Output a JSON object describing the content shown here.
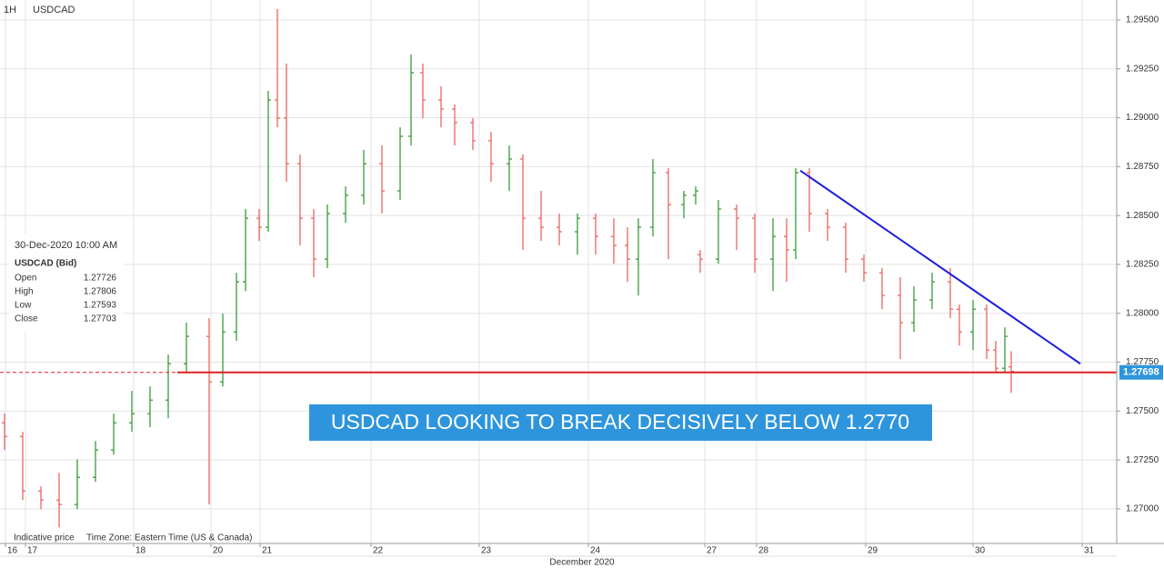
{
  "chart_data": {
    "type": "ohlc",
    "timeframe": "1H",
    "symbol": "USDCAD",
    "annotation": "USDCAD LOOKING TO BREAK DECISIVELY BELOW 1.2770",
    "footer_left": "Indicative price",
    "footer_timezone": "Time Zone: Eastern Time (US & Canada)",
    "x_axis_label": "December 2020",
    "up_color": "#3a9a3a",
    "down_color": "#e8675d",
    "grid": true,
    "xlim": [
      0,
      245.6
    ],
    "xticks": [
      {
        "value": 1.2,
        "label": "16"
      },
      {
        "value": 5.6,
        "label": "17"
      },
      {
        "value": 29.4,
        "label": "18"
      },
      {
        "value": 46.4,
        "label": "20"
      },
      {
        "value": 57.2,
        "label": "21"
      },
      {
        "value": 81.6,
        "label": "22"
      },
      {
        "value": 105.4,
        "label": "23"
      },
      {
        "value": 129.4,
        "label": "24"
      },
      {
        "value": 155,
        "label": "27"
      },
      {
        "value": 166.4,
        "label": "28"
      },
      {
        "value": 190.4,
        "label": "29"
      },
      {
        "value": 214,
        "label": "30"
      },
      {
        "value": 238,
        "label": "31"
      }
    ],
    "ylim": [
      1.26823,
      1.29602
    ],
    "yticks": [
      {
        "value": 1.295,
        "label": "1.29500"
      },
      {
        "value": 1.2925,
        "label": "1.29250"
      },
      {
        "value": 1.29,
        "label": "1.29000"
      },
      {
        "value": 1.2875,
        "label": "1.28750"
      },
      {
        "value": 1.285,
        "label": "1.28500"
      },
      {
        "value": 1.2825,
        "label": "1.28250"
      },
      {
        "value": 1.28,
        "label": "1.28000"
      },
      {
        "value": 1.2775,
        "label": "1.27750"
      },
      {
        "value": 1.275,
        "label": "1.27500"
      },
      {
        "value": 1.2725,
        "label": "1.27250"
      },
      {
        "value": 1.27,
        "label": "1.27000"
      }
    ],
    "last_price": 1.27698,
    "last_price_color": "#e02020",
    "trendline": {
      "color": "#1f1fe0",
      "x": [
        176,
        237.6
      ],
      "y": [
        1.2873,
        1.27742
      ]
    },
    "x": [
      1,
      5,
      9,
      13,
      17,
      21,
      25,
      29,
      33,
      37,
      41,
      46,
      49,
      52,
      54,
      57,
      59,
      61,
      63,
      66,
      69,
      72,
      76,
      80,
      84,
      88,
      90.4,
      93,
      97,
      100,
      104,
      108,
      112,
      115,
      119,
      123,
      127,
      131,
      135,
      138,
      140.4,
      143.6,
      147,
      150.4,
      153,
      154,
      158,
      162,
      166,
      170,
      173,
      175,
      178,
      182,
      186,
      190,
      194,
      198,
      201,
      205,
      209,
      211,
      214,
      217,
      219,
      221,
      222.4
    ],
    "open": [
      1.2744,
      1.2737,
      1.27091,
      1.27045,
      1.27022,
      1.27161,
      1.27301,
      1.2744,
      1.27487,
      1.27556,
      1.27742,
      1.27882,
      1.27649,
      1.27905,
      1.28161,
      1.28486,
      1.2844,
      1.29091,
      1.28998,
      1.28765,
      1.28486,
      1.28277,
      1.2851,
      1.28603,
      1.28765,
      1.28626,
      1.28905,
      1.2923,
      1.29091,
      1.29044,
      1.28975,
      1.28882,
      1.28765,
      1.28789,
      1.28486,
      1.2844,
      1.28417,
      1.28486,
      1.28393,
      1.28347,
      1.28277,
      1.2844,
      1.28719,
      1.28556,
      1.28603,
      1.283,
      1.28277,
      1.28533,
      1.28486,
      1.28277,
      1.28393,
      1.28324,
      1.28719,
      1.2851,
      1.2844,
      1.28277,
      1.28207,
      1.28091,
      1.27952,
      1.28068,
      1.28161,
      1.28021,
      1.27905,
      1.28021,
      1.27812,
      1.27719,
      1.27726
    ],
    "high": [
      1.27487,
      1.27394,
      1.27115,
      1.27184,
      1.27254,
      1.27347,
      1.27487,
      1.27603,
      1.27626,
      1.27789,
      1.27952,
      1.27975,
      1.27998,
      1.28207,
      1.28533,
      1.28533,
      1.29137,
      1.29556,
      1.29277,
      1.28812,
      1.28533,
      1.28556,
      1.28649,
      1.28835,
      1.28858,
      1.28951,
      1.29323,
      1.29277,
      1.29161,
      1.29068,
      1.28998,
      1.28928,
      1.28858,
      1.28812,
      1.28626,
      1.2851,
      1.2851,
      1.2851,
      1.28486,
      1.2844,
      1.28486,
      1.28789,
      1.28742,
      1.28626,
      1.28649,
      1.28324,
      1.28579,
      1.28556,
      1.2851,
      1.28486,
      1.28486,
      1.28742,
      1.28742,
      1.28533,
      1.28463,
      1.283,
      1.28231,
      1.28184,
      1.28138,
      1.28207,
      1.28231,
      1.28045,
      1.28068,
      1.28045,
      1.27859,
      1.27928,
      1.27806
    ],
    "low": [
      1.27301,
      1.27045,
      1.26998,
      1.26905,
      1.26998,
      1.27138,
      1.27277,
      1.27394,
      1.27417,
      1.27463,
      1.27696,
      1.27022,
      1.27626,
      1.27859,
      1.28114,
      1.2837,
      1.28417,
      1.28951,
      1.28672,
      1.28347,
      1.28184,
      1.28231,
      1.28463,
      1.28556,
      1.2851,
      1.28579,
      1.28858,
      1.28998,
      1.28951,
      1.28858,
      1.28835,
      1.28672,
      1.28626,
      1.28324,
      1.2837,
      1.28347,
      1.283,
      1.283,
      1.28254,
      1.28161,
      1.28091,
      1.28393,
      1.28277,
      1.28486,
      1.28556,
      1.28207,
      1.28254,
      1.28324,
      1.28207,
      1.28114,
      1.28161,
      1.28277,
      1.28417,
      1.2837,
      1.28207,
      1.28161,
      1.28021,
      1.27766,
      1.27905,
      1.28021,
      1.27975,
      1.27835,
      1.27812,
      1.27766,
      1.27696,
      1.27696,
      1.27593
    ],
    "close": [
      1.2737,
      1.27091,
      1.27045,
      1.27022,
      1.27161,
      1.27301,
      1.2744,
      1.27487,
      1.27556,
      1.27742,
      1.27882,
      1.27649,
      1.27905,
      1.28161,
      1.28486,
      1.2844,
      1.29091,
      1.28998,
      1.28765,
      1.28486,
      1.28277,
      1.2851,
      1.28603,
      1.28765,
      1.28626,
      1.28905,
      1.2923,
      1.29091,
      1.29044,
      1.28975,
      1.28882,
      1.28765,
      1.28789,
      1.28486,
      1.2844,
      1.28417,
      1.28486,
      1.28393,
      1.28347,
      1.28277,
      1.2844,
      1.28719,
      1.28556,
      1.28603,
      1.28626,
      1.28277,
      1.28533,
      1.28486,
      1.28277,
      1.28393,
      1.28324,
      1.28719,
      1.2851,
      1.2844,
      1.28277,
      1.28207,
      1.28091,
      1.27952,
      1.28068,
      1.28161,
      1.28021,
      1.27905,
      1.28021,
      1.27812,
      1.27719,
      1.27882,
      1.27703
    ],
    "info_panel": {
      "datetime": "30-Dec-2020 10:00 AM",
      "instrument": "USDCAD (Bid)",
      "rows": [
        [
          "Open",
          1.27726
        ],
        [
          "High",
          1.27806
        ],
        [
          "Low",
          1.27593
        ],
        [
          "Close",
          1.27703
        ]
      ]
    }
  }
}
